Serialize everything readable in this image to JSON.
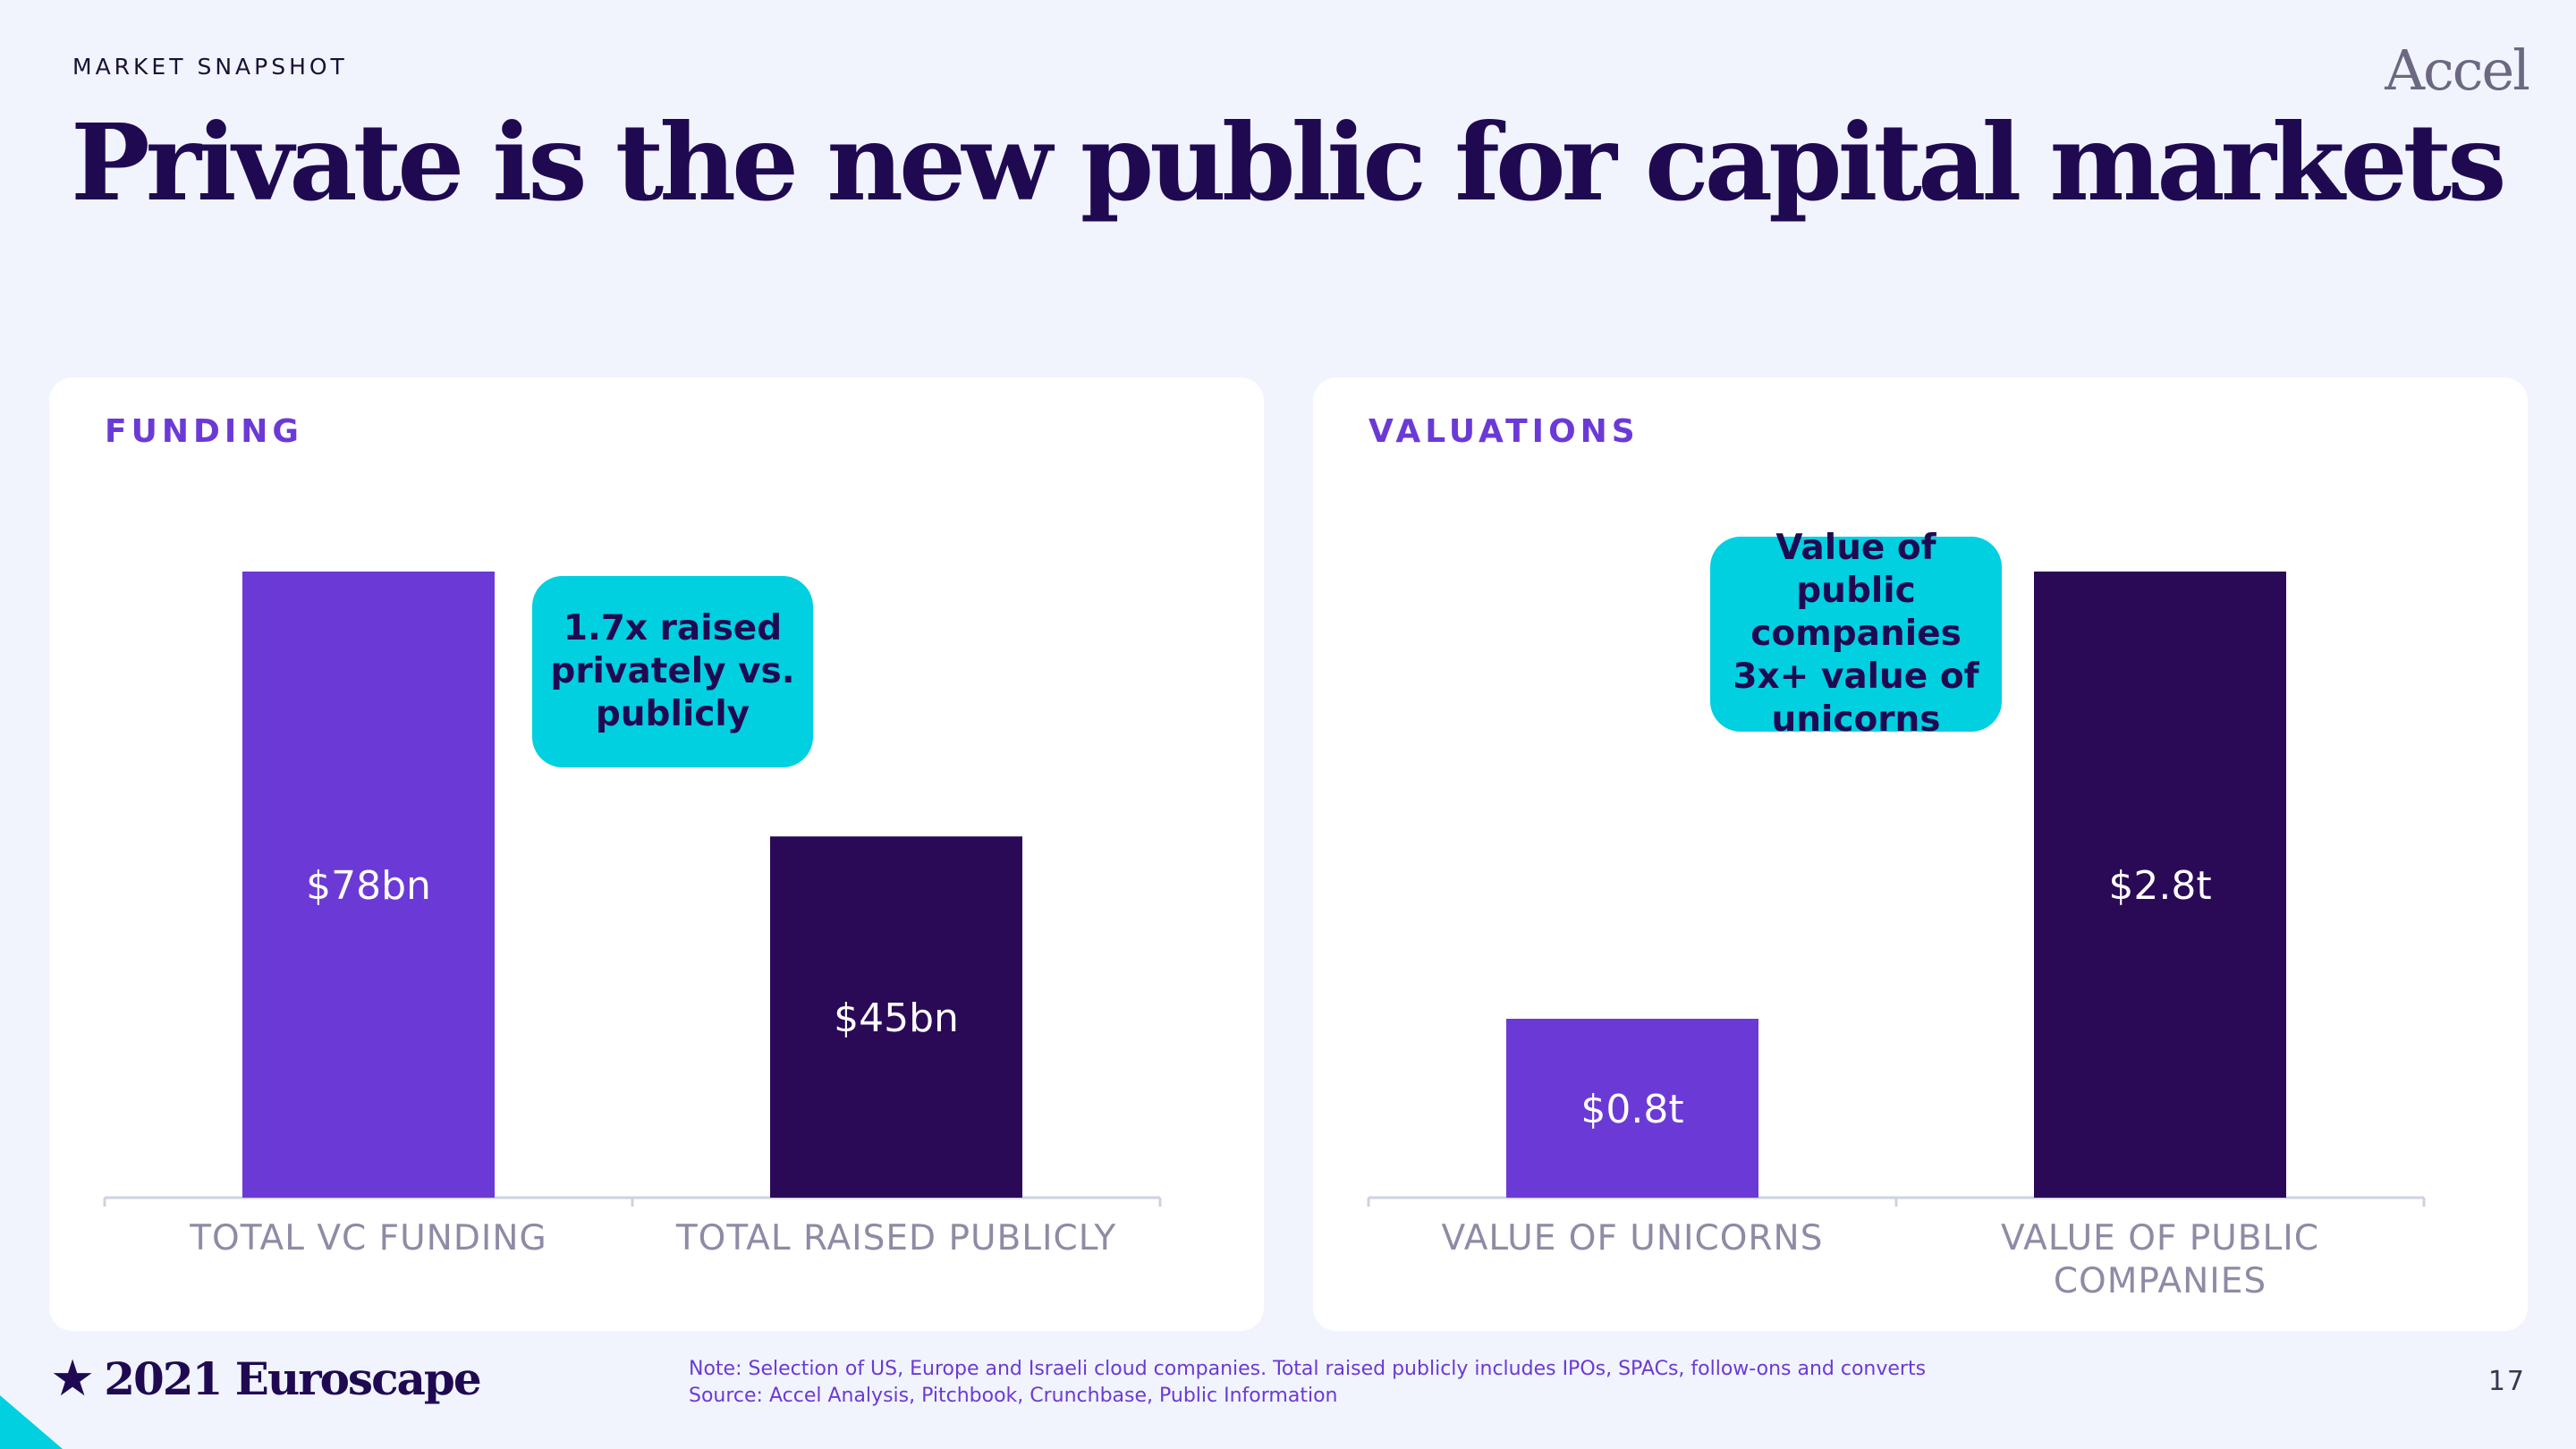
{
  "header": {
    "eyebrow": "MARKET SNAPSHOT",
    "brand": "Accel",
    "title": "Private is the new public for capital markets"
  },
  "colors": {
    "background": "#f1f4fd",
    "navy": "#1f0a52",
    "purple": "#6b3ad6",
    "dark_purple": "#2a0a57",
    "teal": "#00d0e0",
    "axis_label": "#8f8aa5"
  },
  "panels": {
    "funding": {
      "title": "FUNDING",
      "callout": [
        "1.7x raised",
        "privately vs.",
        "publicly"
      ]
    },
    "valuations": {
      "title": "VALUATIONS",
      "callout": [
        "Value of public",
        "companies",
        "3x+ value of",
        "unicorns"
      ]
    }
  },
  "chart_data": [
    {
      "type": "bar",
      "title": "FUNDING",
      "categories": [
        "TOTAL VC FUNDING",
        "TOTAL RAISED PUBLICLY"
      ],
      "values": [
        78,
        45
      ],
      "data_labels": [
        "$78bn",
        "$45bn"
      ],
      "unit": "bn",
      "bar_colors": [
        "#6b3ad6",
        "#2a0a57"
      ],
      "ylim": [
        0,
        78
      ]
    },
    {
      "type": "bar",
      "title": "VALUATIONS",
      "categories": [
        "VALUE OF UNICORNS",
        "VALUE OF PUBLIC COMPANIES"
      ],
      "category_lines": [
        [
          "VALUE OF UNICORNS"
        ],
        [
          "VALUE OF PUBLIC",
          "COMPANIES"
        ]
      ],
      "values": [
        0.8,
        2.8
      ],
      "data_labels": [
        "$0.8t",
        "$2.8t"
      ],
      "unit": "t",
      "bar_colors": [
        "#6b3ad6",
        "#2a0a57"
      ],
      "ylim": [
        0,
        2.8
      ]
    }
  ],
  "footer": {
    "star": "★",
    "brand": "2021 Euroscape",
    "note": "Note: Selection of US, Europe and Israeli cloud companies. Total raised publicly includes IPOs, SPACs, follow-ons and converts",
    "source": "Source: Accel Analysis, Pitchbook, Crunchbase, Public Information",
    "page_number": "17"
  }
}
